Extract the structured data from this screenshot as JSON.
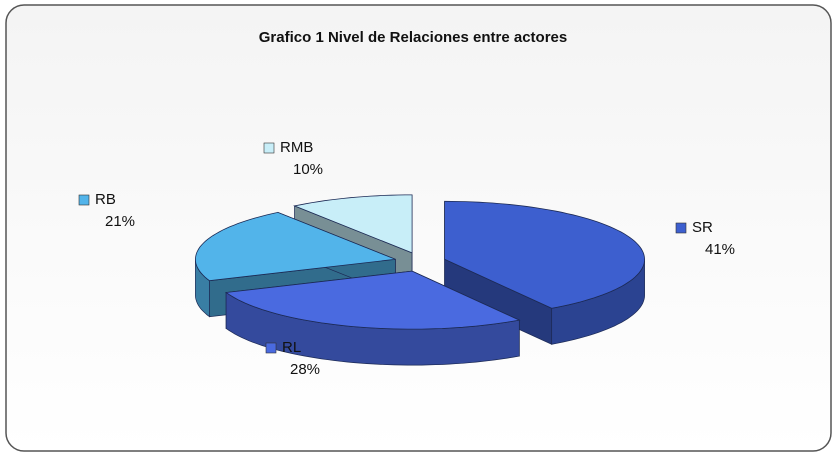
{
  "chart_data": {
    "type": "pie3d",
    "title": "Grafico 1 Nivel de Relaciones entre actores",
    "categories": [
      "SR",
      "RL",
      "RB",
      "RMB"
    ],
    "values": [
      41,
      28,
      21,
      10
    ],
    "value_labels": [
      "41%",
      "28%",
      "21%",
      "10%"
    ],
    "colors": [
      "#3d5fcf",
      "#4a6ae0",
      "#52b4ea",
      "#c8eef8"
    ]
  }
}
